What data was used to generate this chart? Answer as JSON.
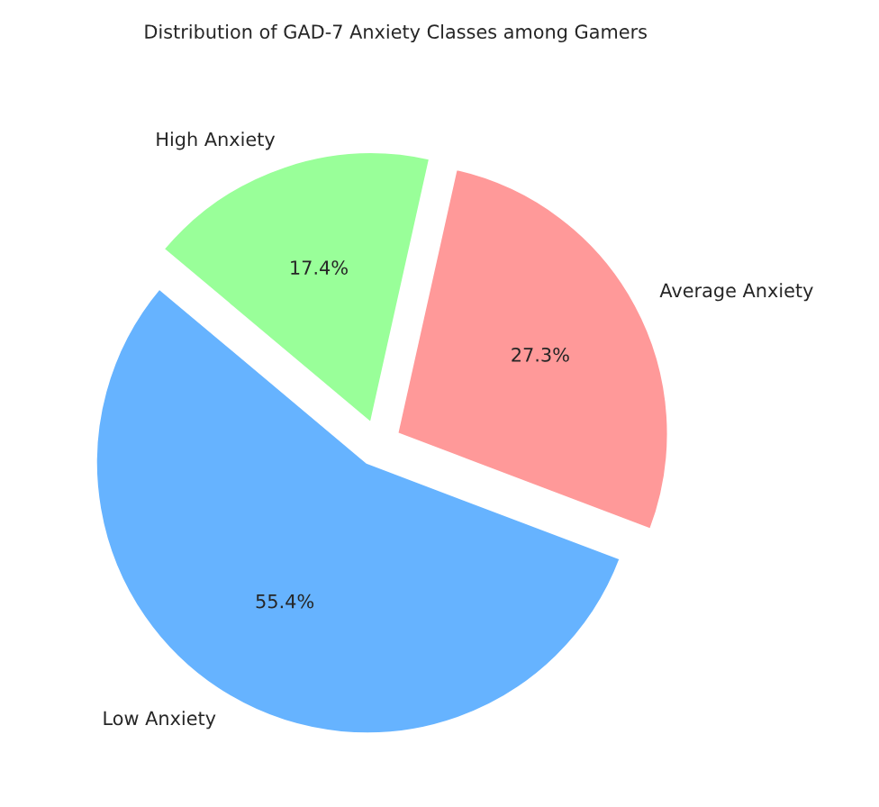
{
  "chart_data": {
    "type": "pie",
    "title": "Distribution of GAD-7 Anxiety Classes among Gamers",
    "categories": [
      "Low Anxiety",
      "Average Anxiety",
      "High Anxiety"
    ],
    "values": [
      55.4,
      27.3,
      17.4
    ],
    "value_labels": [
      "55.4%",
      "27.3%",
      "17.4%"
    ],
    "colors": [
      "#66b3ff",
      "#ff9999",
      "#99ff99"
    ]
  }
}
